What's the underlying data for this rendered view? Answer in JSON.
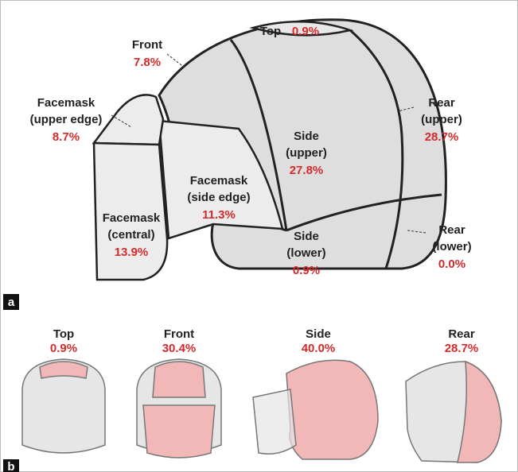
{
  "panel_a": {
    "label": "a",
    "regions": [
      {
        "name": [
          "Top"
        ],
        "percent": "0.9%"
      },
      {
        "name": [
          "Front"
        ],
        "percent": "7.8%"
      },
      {
        "name": [
          "Facemask",
          "(upper edge)"
        ],
        "percent": "8.7%"
      },
      {
        "name": [
          "Side",
          "(upper)"
        ],
        "percent": "27.8%"
      },
      {
        "name": [
          "Rear",
          "(upper)"
        ],
        "percent": "28.7%"
      },
      {
        "name": [
          "Facemask",
          "(side edge)"
        ],
        "percent": "11.3%"
      },
      {
        "name": [
          "Facemask",
          "(central)"
        ],
        "percent": "13.9%"
      },
      {
        "name": [
          "Side",
          "(lower)"
        ],
        "percent": "0.9%"
      },
      {
        "name": [
          "Rear",
          "(lower)"
        ],
        "percent": "0.0%"
      }
    ]
  },
  "panel_b": {
    "label": "b",
    "views": [
      {
        "name": "Top",
        "percent": "0.9%"
      },
      {
        "name": "Front",
        "percent": "30.4%"
      },
      {
        "name": "Side",
        "percent": "40.0%"
      },
      {
        "name": "Rear",
        "percent": "28.7%"
      }
    ]
  }
}
